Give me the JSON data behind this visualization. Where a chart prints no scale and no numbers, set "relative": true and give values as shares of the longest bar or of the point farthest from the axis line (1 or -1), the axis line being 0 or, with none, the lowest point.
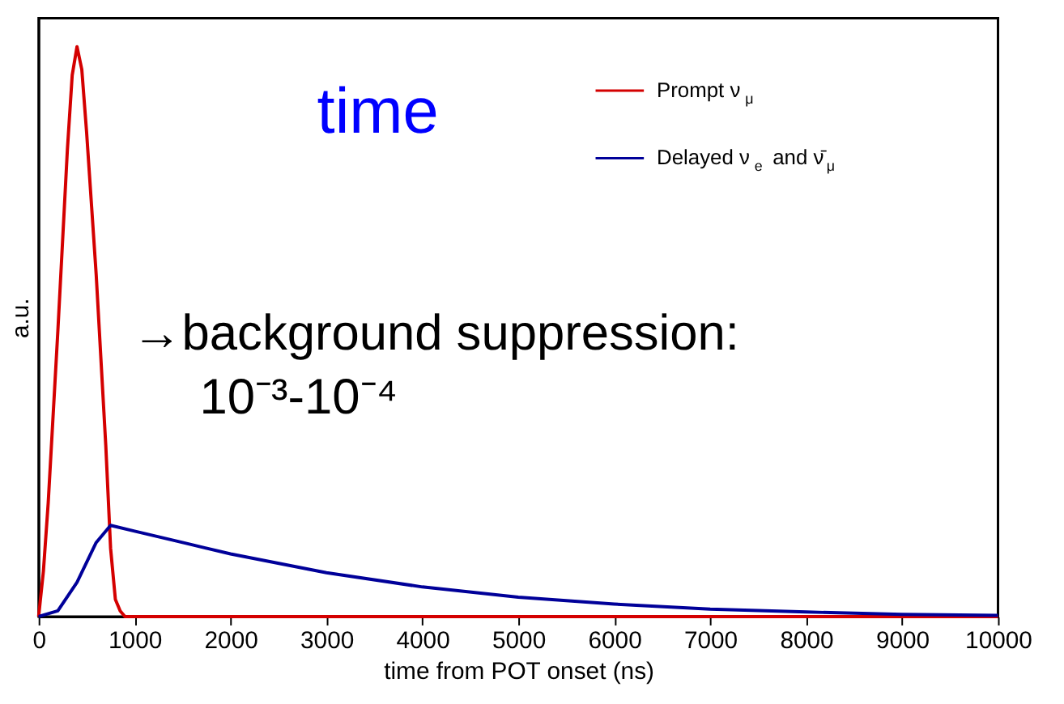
{
  "chart_data": {
    "type": "line",
    "relative": true,
    "xlabel": "time from POT onset (ns)",
    "ylabel": "a.u.",
    "xlim": [
      0,
      10000
    ],
    "xticks": [
      0,
      1000,
      2000,
      3000,
      4000,
      5000,
      6000,
      7000,
      8000,
      9000,
      10000
    ],
    "grid": false,
    "legend": "top right",
    "line_style": "solid",
    "marker": "none",
    "annotations": [
      "time",
      "→background suppression:",
      "10⁻³-10⁻⁴"
    ],
    "series": [
      {
        "name": "Prompt ν$_{μ}$",
        "color": "#d40000",
        "x": [
          0,
          50,
          100,
          200,
          300,
          350,
          400,
          450,
          500,
          600,
          700,
          750,
          800,
          850,
          900,
          10000
        ],
        "values": [
          0,
          0.08,
          0.2,
          0.5,
          0.82,
          0.95,
          1,
          0.96,
          0.85,
          0.6,
          0.3,
          0.12,
          0.03,
          0.01,
          0,
          0
        ]
      },
      {
        "name": "Delayed ν$_{e}$ and ν̄$_{μ}$",
        "color": "#000099",
        "x": [
          0,
          200,
          400,
          600,
          750,
          1000,
          1500,
          2000,
          3000,
          4000,
          5000,
          6000,
          7000,
          8000,
          9000,
          10000
        ],
        "values": [
          0,
          0.01,
          0.06,
          0.13,
          0.16,
          0.15,
          0.13,
          0.11,
          0.077,
          0.052,
          0.034,
          0.022,
          0.013,
          0.008,
          0.004,
          0.002
        ]
      }
    ]
  }
}
